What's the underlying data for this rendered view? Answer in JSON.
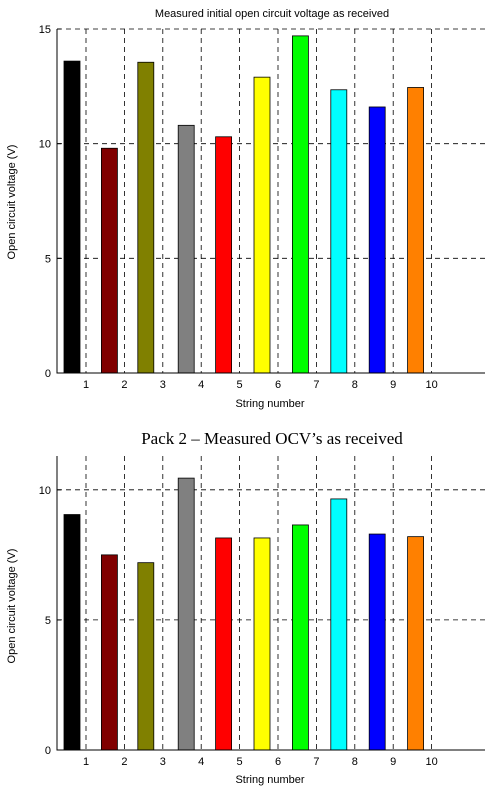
{
  "chart_data": [
    {
      "type": "bar",
      "title": "Measured initial open circuit voltage as received",
      "xlabel": "String number",
      "ylabel": "Open circuit voltage (V)",
      "categories": [
        "1",
        "2",
        "3",
        "4",
        "5",
        "6",
        "7",
        "8",
        "9",
        "10"
      ],
      "values": [
        13.6,
        9.8,
        13.55,
        10.8,
        10.3,
        12.9,
        14.7,
        12.35,
        11.6,
        12.45
      ],
      "colors": [
        "#000000",
        "#800000",
        "#808000",
        "#808080",
        "#ff0000",
        "#ffff00",
        "#00ff00",
        "#00ffff",
        "#0000ff",
        "#ff8000"
      ],
      "ylim": [
        0,
        15
      ],
      "yticks": [
        0,
        5,
        10,
        15
      ],
      "grid": true,
      "legend": "none"
    },
    {
      "type": "bar",
      "title": "Pack 2 – Measured OCV’s as received",
      "xlabel": "String number",
      "ylabel": "Open circuit voltage (V)",
      "categories": [
        "1",
        "2",
        "3",
        "4",
        "5",
        "6",
        "7",
        "8",
        "9",
        "10"
      ],
      "values": [
        9.05,
        7.5,
        7.2,
        10.45,
        8.15,
        8.15,
        8.65,
        9.65,
        8.3,
        8.2
      ],
      "colors": [
        "#000000",
        "#800000",
        "#808000",
        "#808080",
        "#ff0000",
        "#ffff00",
        "#00ff00",
        "#00ffff",
        "#0000ff",
        "#ff8000"
      ],
      "ylim": [
        0,
        11.3
      ],
      "yticks": [
        0,
        5,
        10
      ],
      "grid": true,
      "legend": "none"
    }
  ]
}
